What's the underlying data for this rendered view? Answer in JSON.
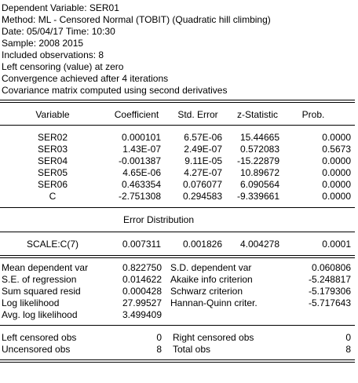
{
  "header": {
    "lines": [
      "Dependent Variable: SER01",
      "Method: ML - Censored Normal (TOBIT) (Quadratic hill climbing)",
      "Date: 05/04/17   Time: 10:30",
      "Sample: 2008 2015",
      "Included observations: 8",
      "Left censoring (value) at zero",
      "Convergence achieved after 4 iterations",
      "Covariance matrix computed using second derivatives"
    ]
  },
  "table": {
    "columns": [
      "Variable",
      "Coefficient",
      "Std. Error",
      "z-Statistic",
      "Prob."
    ],
    "rows": [
      [
        "SER02",
        "0.000101",
        "6.57E-06",
        "15.44665",
        "0.0000"
      ],
      [
        "SER03",
        "1.43E-07",
        "2.49E-07",
        "0.572083",
        "0.5673"
      ],
      [
        "SER04",
        "-0.001387",
        "9.11E-05",
        "-15.22879",
        "0.0000"
      ],
      [
        "SER05",
        "4.65E-06",
        "4.27E-07",
        "10.89672",
        "0.0000"
      ],
      [
        "SER06",
        "0.463354",
        "0.076077",
        "6.090564",
        "0.0000"
      ],
      [
        "C",
        "-2.751308",
        "0.294583",
        "-9.339661",
        "0.0000"
      ]
    ]
  },
  "error_distribution": {
    "title": "Error Distribution",
    "rows": [
      [
        "SCALE:C(7)",
        "0.007311",
        "0.001826",
        "4.004278",
        "0.0001"
      ]
    ]
  },
  "statistics": {
    "rows": [
      [
        "Mean dependent var",
        "0.822750",
        "S.D. dependent var",
        "0.060806"
      ],
      [
        "S.E. of regression",
        "0.014622",
        "Akaike info criterion",
        "-5.248817"
      ],
      [
        "Sum squared resid",
        "0.000428",
        "Schwarz criterion",
        "-5.179306"
      ],
      [
        "Log likelihood",
        "27.99527",
        "Hannan-Quinn criter.",
        "-5.717643"
      ],
      [
        "Avg. log likelihood",
        "3.499409"
      ]
    ]
  },
  "censoring": {
    "rows": [
      [
        "Left censored obs",
        "0",
        "Right censored obs",
        "0"
      ],
      [
        "Uncensored obs",
        "8",
        "Total obs",
        "8"
      ]
    ]
  }
}
